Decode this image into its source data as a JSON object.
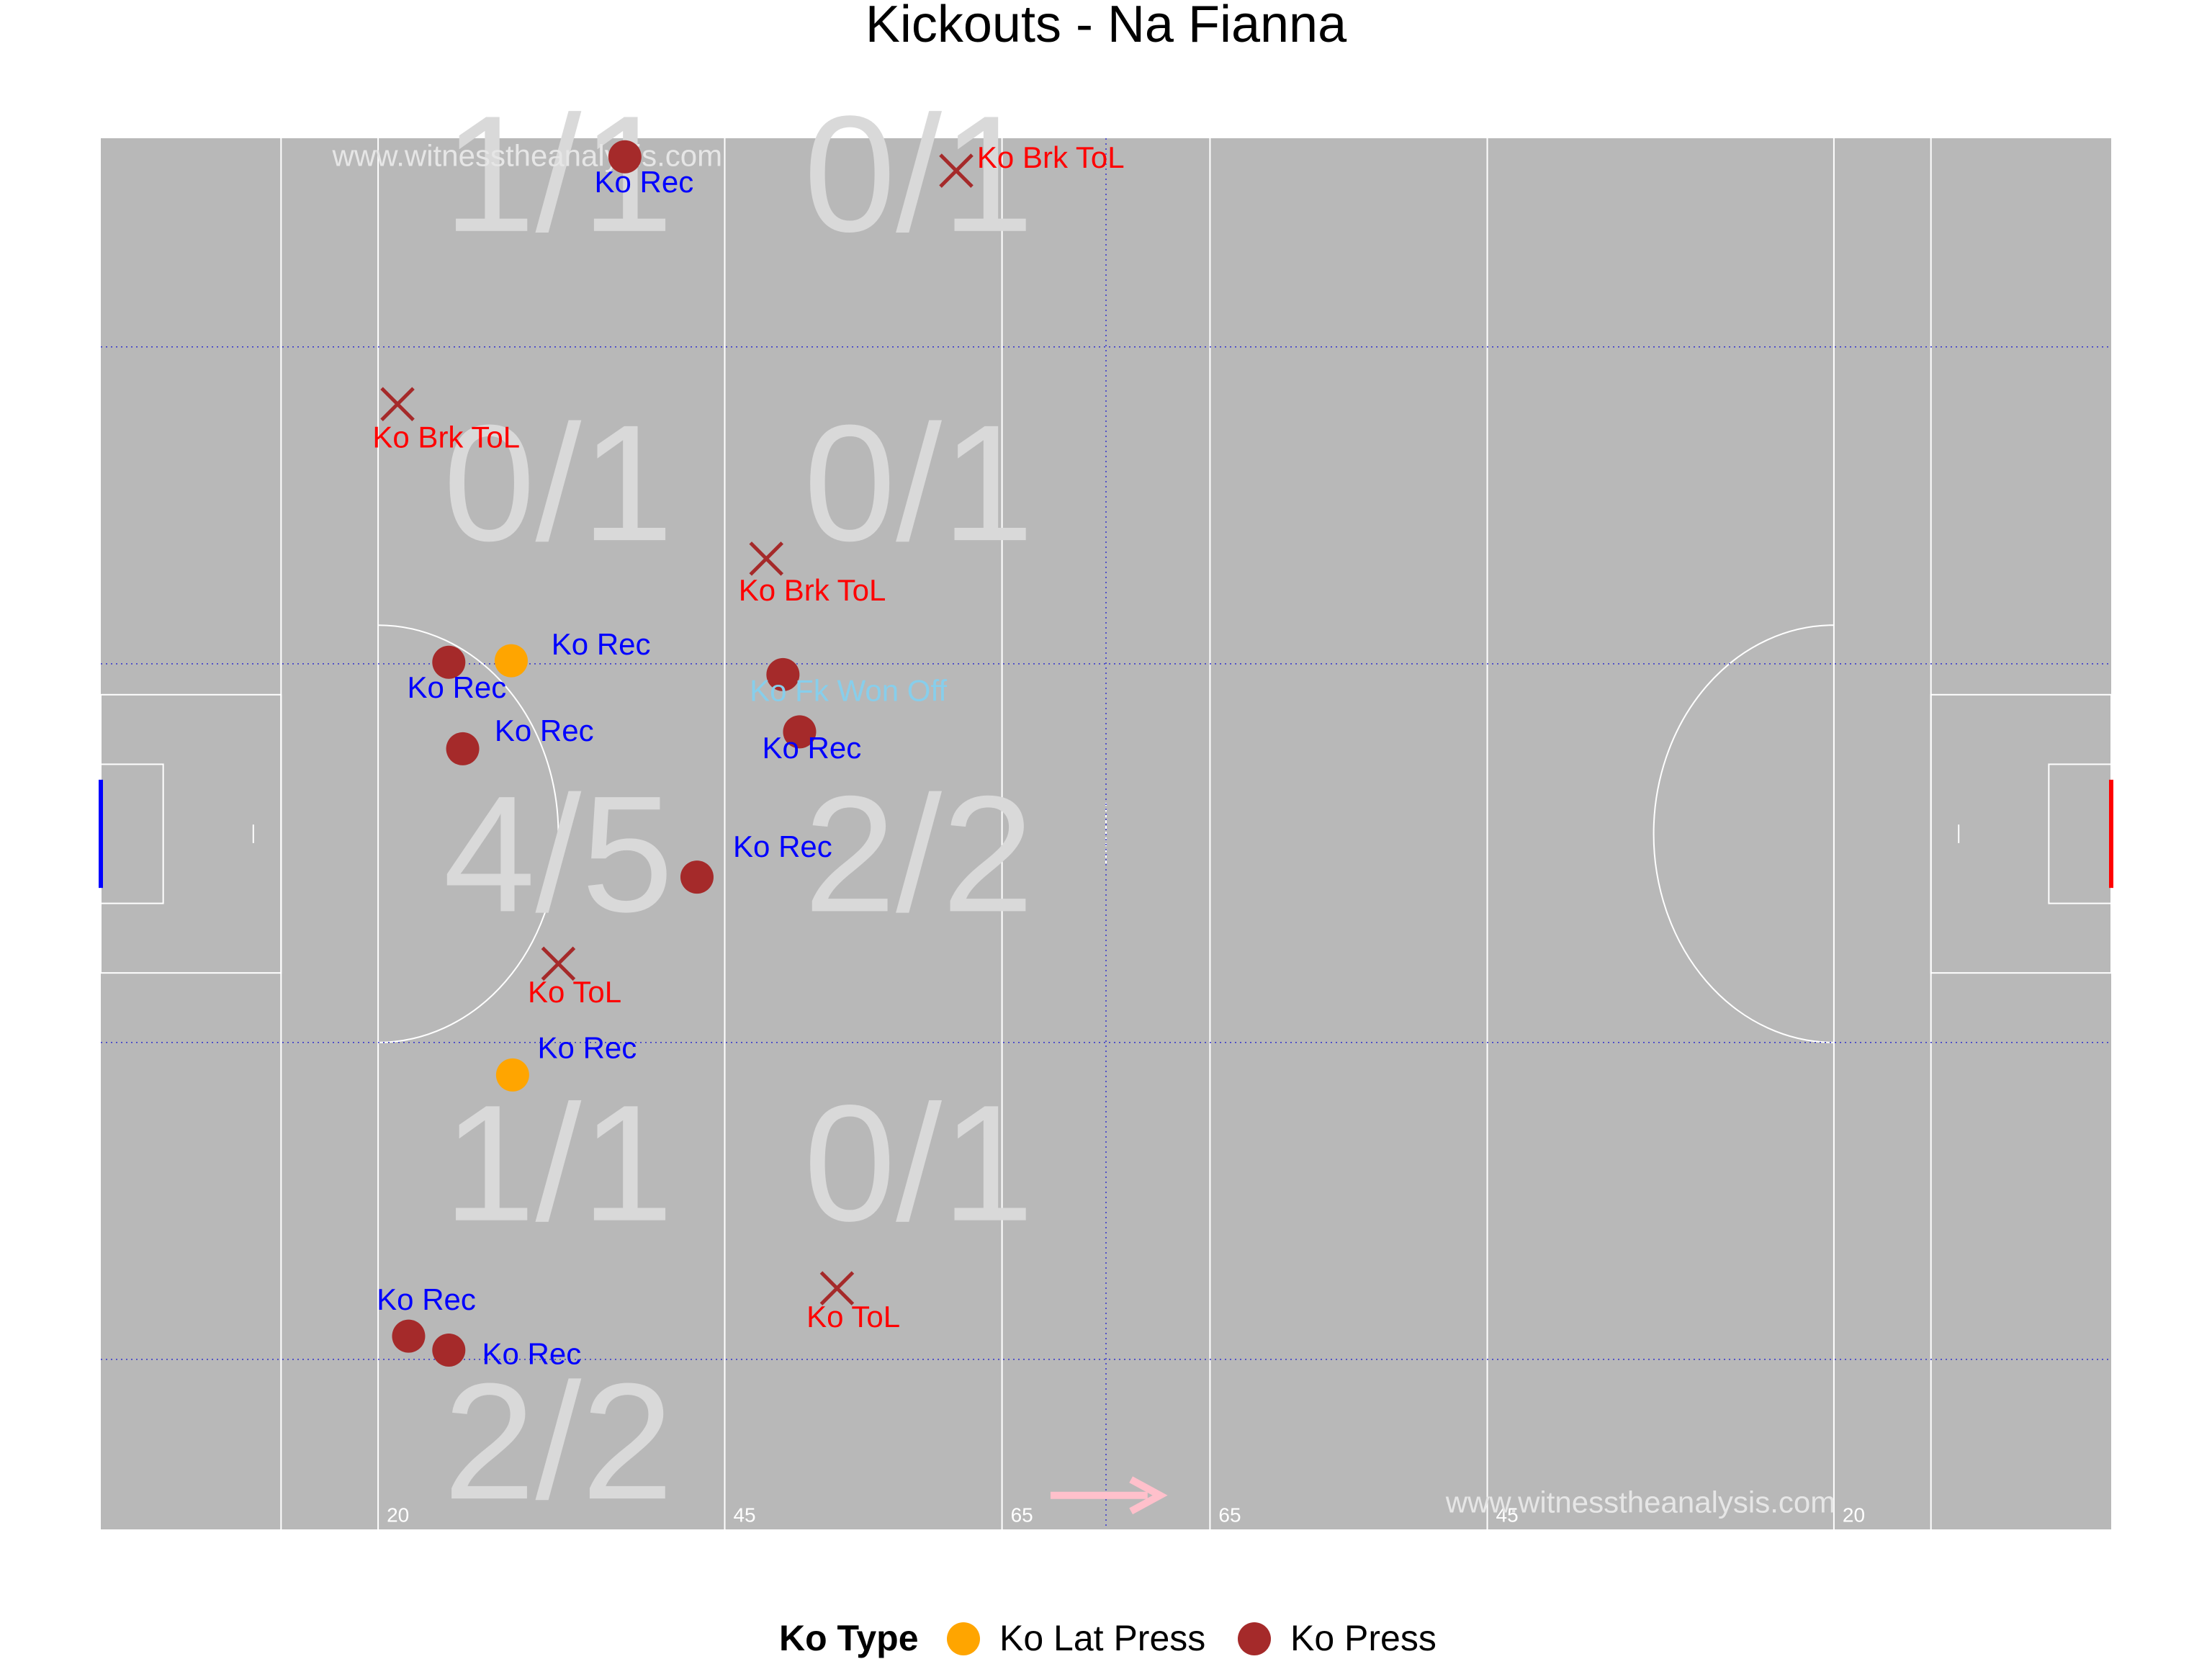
{
  "chart_data": {
    "type": "scatter",
    "title": "Kickouts - Na Fianna",
    "xlim": [
      0,
      145
    ],
    "ylim": [
      0,
      90
    ],
    "colors": {
      "pitch": "#b8b8b8",
      "line": "#ffffff",
      "zone_line": "#3333cc",
      "ko_press": "#a52a2a",
      "ko_lat_press": "#ffa500",
      "label_rec": "#0000ff",
      "label_tol": "#ff0000",
      "label_fk": "#87ceeb",
      "left_goal": "#0000ff",
      "right_goal": "#ff0000",
      "arrow": "#ffc0cb"
    },
    "distance_markers": [
      {
        "x": 20,
        "label": "20"
      },
      {
        "x": 45,
        "label": "45"
      },
      {
        "x": 65,
        "label": "65"
      },
      {
        "x": 80,
        "label": "65"
      },
      {
        "x": 100,
        "label": "45"
      },
      {
        "x": 125,
        "label": "20"
      }
    ],
    "zone_counts": [
      {
        "x": 33,
        "y": 84,
        "text": "1/1"
      },
      {
        "x": 59,
        "y": 84,
        "text": "0/1"
      },
      {
        "x": 33,
        "y": 64,
        "text": "0/1"
      },
      {
        "x": 59,
        "y": 64,
        "text": "0/1"
      },
      {
        "x": 33,
        "y": 40,
        "text": "4/5"
      },
      {
        "x": 59,
        "y": 40,
        "text": "2/2"
      },
      {
        "x": 33,
        "y": 20,
        "text": "1/1"
      },
      {
        "x": 59,
        "y": 20,
        "text": "0/1"
      },
      {
        "x": 33,
        "y": 2,
        "text": "2/2"
      }
    ],
    "points": [
      {
        "x": 37.8,
        "y": 88.8,
        "type": "Ko Press",
        "outcome": "Ko Rec",
        "lx": 35.6,
        "ly": 86.5
      },
      {
        "x": 61.7,
        "y": 87.9,
        "type": "Ko Press",
        "outcome": "Ko Brk ToL",
        "lx": 63.2,
        "ly": 88.1
      },
      {
        "x": 21.4,
        "y": 72.8,
        "type": "Ko Press",
        "outcome": "Ko Brk ToL",
        "lx": 19.6,
        "ly": 70.0
      },
      {
        "x": 48.0,
        "y": 62.8,
        "type": "Ko Press",
        "outcome": "Ko Brk ToL",
        "lx": 46.0,
        "ly": 60.1
      },
      {
        "x": 29.6,
        "y": 56.2,
        "type": "Ko Lat Press",
        "outcome": "Ko Rec",
        "lx": 32.5,
        "ly": 56.6
      },
      {
        "x": 25.1,
        "y": 56.1,
        "type": "Ko Press",
        "outcome": "Ko Rec",
        "lx": 22.1,
        "ly": 53.8
      },
      {
        "x": 49.2,
        "y": 55.3,
        "type": "Ko Press",
        "outcome": "Ko Fk Won Off",
        "lx": 46.8,
        "ly": 53.6
      },
      {
        "x": 50.4,
        "y": 51.6,
        "type": "Ko Press",
        "outcome": "Ko Rec",
        "lx": 47.7,
        "ly": 49.9
      },
      {
        "x": 26.1,
        "y": 50.5,
        "type": "Ko Press",
        "outcome": "Ko Rec",
        "lx": 28.4,
        "ly": 51.0
      },
      {
        "x": 43.0,
        "y": 42.2,
        "type": "Ko Press",
        "outcome": "Ko Rec",
        "lx": 45.6,
        "ly": 43.5
      },
      {
        "x": 33.0,
        "y": 36.6,
        "type": "Ko Press",
        "outcome": "Ko ToL",
        "lx": 30.8,
        "ly": 34.1
      },
      {
        "x": 29.7,
        "y": 29.4,
        "type": "Ko Lat Press",
        "outcome": "Ko Rec",
        "lx": 31.5,
        "ly": 30.5
      },
      {
        "x": 53.1,
        "y": 15.6,
        "type": "Ko Press",
        "outcome": "Ko ToL",
        "lx": 50.9,
        "ly": 13.1
      },
      {
        "x": 22.2,
        "y": 12.5,
        "type": "Ko Press",
        "outcome": "Ko Rec",
        "lx": 19.9,
        "ly": 14.2
      },
      {
        "x": 25.1,
        "y": 11.6,
        "type": "Ko Press",
        "outcome": "Ko Rec",
        "lx": 27.5,
        "ly": 10.7
      }
    ],
    "watermarks": [
      {
        "text": "www.witnesstheanalysis.com",
        "x": 16.7,
        "y": 88.2
      },
      {
        "text": "www.witnesstheanalysis.com",
        "x": 97.0,
        "y": 1.1
      }
    ],
    "legend": {
      "title": "Ko Type",
      "position": "bottom",
      "entries": [
        {
          "label": "Ko Lat Press",
          "color": "#ffa500"
        },
        {
          "label": "Ko Press",
          "color": "#a52a2a"
        }
      ]
    }
  }
}
